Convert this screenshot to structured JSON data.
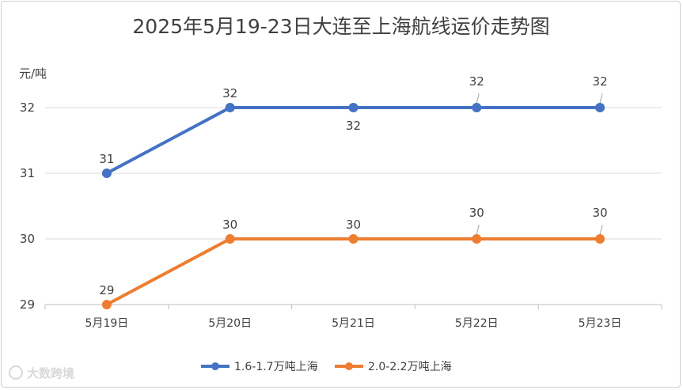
{
  "chart_data": {
    "type": "line",
    "title": "2025年5月19-23日大连至上海航线运价走势图",
    "ylabel": "元/吨",
    "xlabel": "",
    "categories": [
      "5月19日",
      "5月20日",
      "5月21日",
      "5月22日",
      "5月23日"
    ],
    "ylim": [
      29,
      32
    ],
    "yticks": [
      29,
      30,
      31,
      32
    ],
    "grid": true,
    "legend_position": "bottom",
    "series": [
      {
        "name": "1.6-1.7万吨上海",
        "color": "#4472c4",
        "values": [
          31,
          32,
          32,
          32,
          32
        ]
      },
      {
        "name": "2.0-2.2万吨上海",
        "color": "#ed7d31",
        "values": [
          29,
          30,
          30,
          30,
          30
        ]
      }
    ]
  },
  "watermark": {
    "text": "大数跨境"
  }
}
